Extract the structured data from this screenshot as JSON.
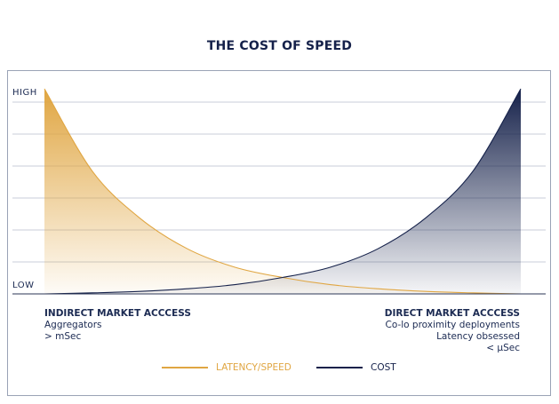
{
  "chart_data": {
    "type": "area",
    "title": "THE COST OF SPEED",
    "y_ticks": [
      "HIGH",
      "LOW"
    ],
    "x_extremes": [
      {
        "heading": "INDIRECT MARKET ACCCESS",
        "lines": [
          "Aggregators",
          "> mSec"
        ]
      },
      {
        "heading": "DIRECT MARKET ACCCESS",
        "lines": [
          "Co-lo proximity deployments",
          "Latency obsessed",
          "< µSec"
        ]
      }
    ],
    "x": [
      0,
      0.1,
      0.2,
      0.3,
      0.4,
      0.5,
      0.6,
      0.7,
      0.8,
      0.9,
      1.0
    ],
    "series": [
      {
        "name": "LATENCY/SPEED",
        "color": "#e0a642",
        "values": [
          1.0,
          0.6,
          0.37,
          0.22,
          0.13,
          0.08,
          0.045,
          0.025,
          0.012,
          0.005,
          0.0
        ]
      },
      {
        "name": "COST",
        "color": "#15214a",
        "values": [
          0.0,
          0.005,
          0.012,
          0.025,
          0.045,
          0.08,
          0.13,
          0.22,
          0.37,
          0.6,
          1.0
        ]
      }
    ],
    "ylim": [
      0,
      1
    ],
    "grid": true,
    "legend_position": "bottom-center"
  }
}
